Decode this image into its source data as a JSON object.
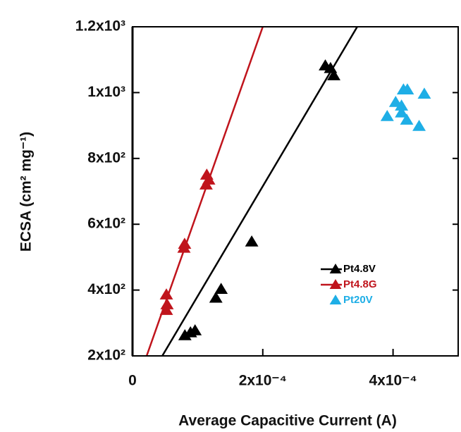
{
  "chart_data": {
    "type": "scatter",
    "xlabel": "Average Capacitive Current (A)",
    "ylabel": "ECSA (cm² mg⁻¹)",
    "xlim": [
      0,
      0.0005
    ],
    "ylim": [
      200,
      1200
    ],
    "xticks": [
      0,
      {
        "value": 0.0002,
        "label": "2x10⁻⁴"
      },
      {
        "value": 0.0004,
        "label": "4x10⁻⁴"
      }
    ],
    "yticks": [
      {
        "value": 200,
        "label": "2x10²"
      },
      {
        "value": 400,
        "label": "4x10²"
      },
      {
        "value": 600,
        "label": "6x10²"
      },
      {
        "value": 800,
        "label": "8x10²"
      },
      {
        "value": 1000,
        "label": "1x10³"
      },
      {
        "value": 1200,
        "label": "1.2x10³"
      }
    ],
    "legend": "lower right",
    "series": [
      {
        "name": "Pt4.8V",
        "color": "#000000",
        "x": [
          8.04e-05,
          8.9e-05,
          9.6e-05,
          0.000128,
          0.000136,
          0.000183,
          0.000296,
          0.000304,
          0.000309
        ],
        "values": [
          262,
          271,
          277,
          376,
          403,
          547,
          1082,
          1074,
          1052
        ],
        "fit": {
          "x": [
            4.57e-05,
            0.000345
          ],
          "y": [
            200,
            1200
          ]
        }
      },
      {
        "name": "Pt4.8G",
        "color": "#c0141c",
        "x": [
          5.2e-05,
          5.3e-05,
          5.2e-05,
          7.9e-05,
          8e-05,
          0.000113,
          0.000117,
          0.000114
        ],
        "values": [
          339,
          356,
          386,
          528,
          540,
          720,
          735,
          750
        ],
        "fit": {
          "x": [
            2.17e-05,
            0.0002
          ],
          "y": [
            200,
            1200
          ]
        }
      },
      {
        "name": "Pt20V",
        "color": "#1eaee6",
        "x": [
          0.000391,
          0.000404,
          0.000416,
          0.000422,
          0.000413,
          0.000413,
          0.000421,
          0.000448,
          0.00044
        ],
        "values": [
          928,
          971,
          1009,
          1009,
          960,
          939,
          917,
          996,
          898
        ]
      }
    ]
  }
}
